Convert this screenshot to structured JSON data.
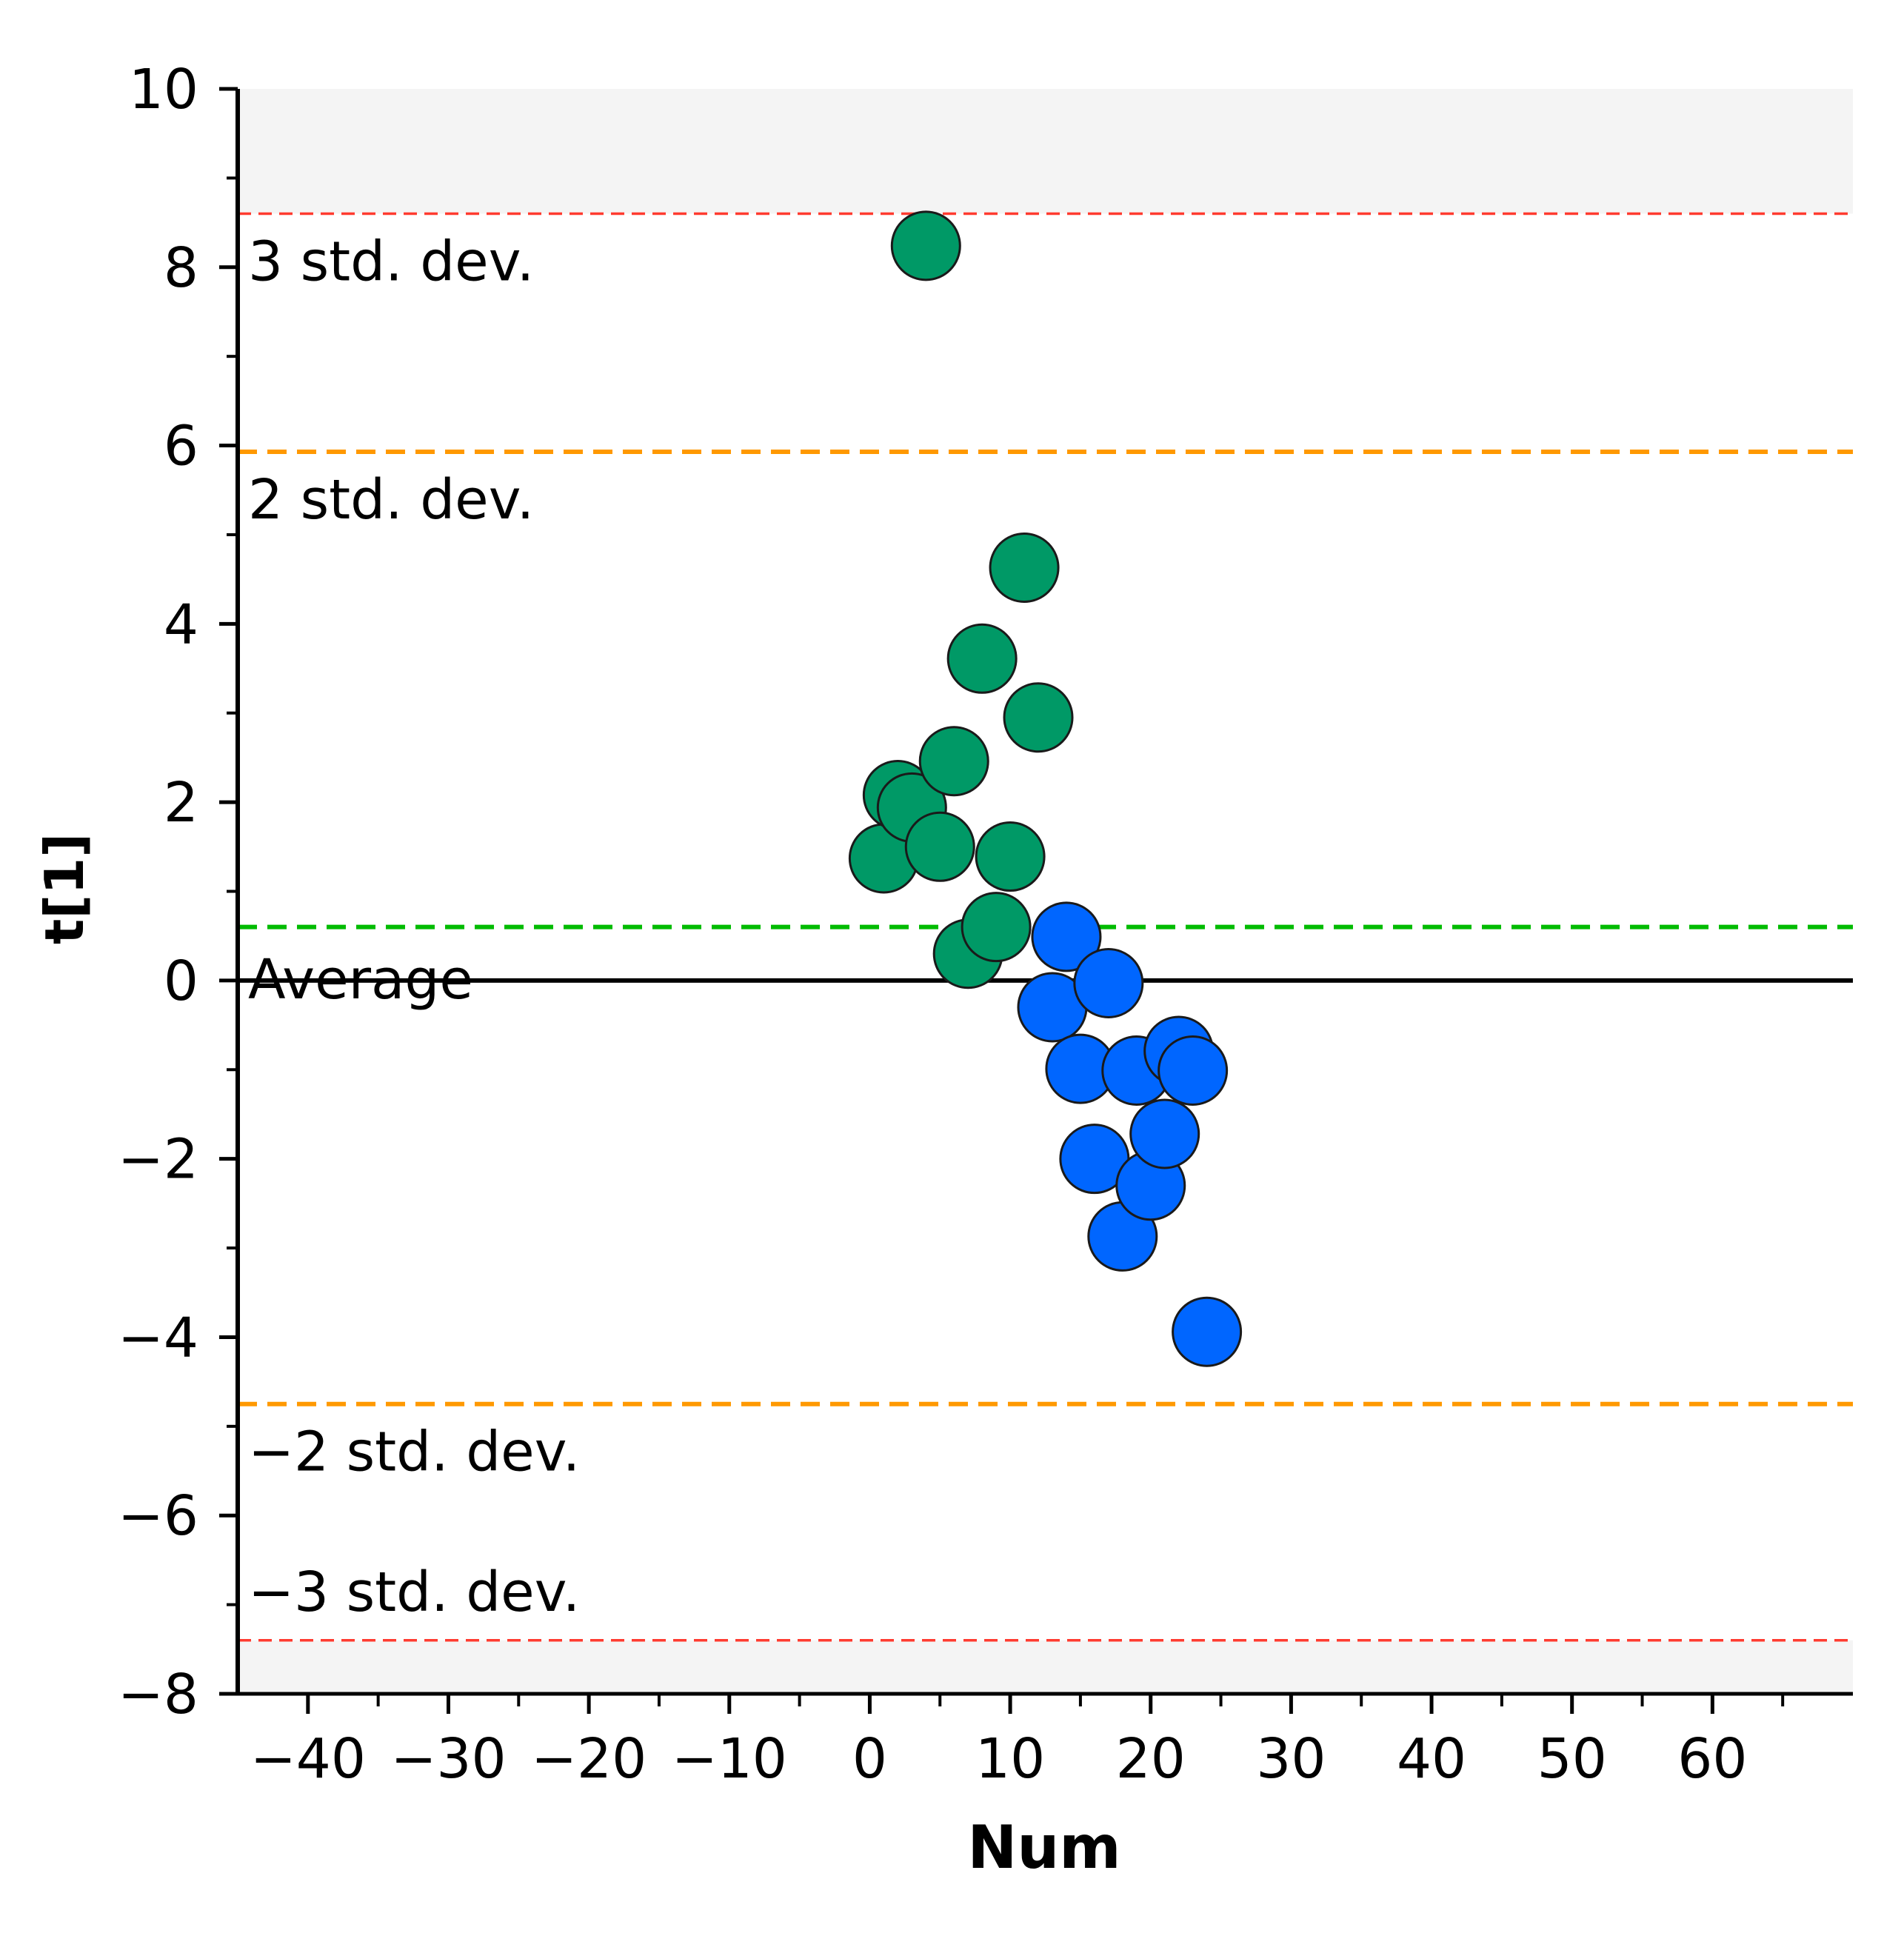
{
  "chart_data": {
    "type": "scatter",
    "title": "",
    "xlabel": "Num",
    "ylabel": "t[1]",
    "xlim": [
      -45,
      70
    ],
    "ylim": [
      -8,
      10
    ],
    "xticks": [
      -40,
      -30,
      -20,
      -10,
      0,
      10,
      20,
      30,
      40,
      50,
      60
    ],
    "xtick_labels": [
      "−40",
      "−30",
      "−20",
      "−10",
      "0",
      "10",
      "20",
      "30",
      "40",
      "50",
      "60"
    ],
    "yticks": [
      10,
      8,
      6,
      4,
      2,
      0,
      -2,
      -4,
      -6,
      -8
    ],
    "ytick_labels": [
      "10",
      "8",
      "6",
      "4",
      "2",
      "0",
      "−2",
      "−4",
      "−6",
      "−8"
    ],
    "grid": false,
    "reference_lines": [
      {
        "name": "3-std-dev",
        "label": "3 std. dev.",
        "y": 8.6,
        "color": "#ff3b30",
        "style": "dashed-thin"
      },
      {
        "name": "2-std-dev",
        "label": "2 std. dev.",
        "y": 5.93,
        "color": "#ff9900",
        "style": "dashed"
      },
      {
        "name": "green-mean",
        "label": "",
        "y": 0.6,
        "color": "#00bb00",
        "style": "dashed"
      },
      {
        "name": "average",
        "label": "Average",
        "y": 0,
        "color": "#000000",
        "style": "solid"
      },
      {
        "name": "minus-2-std-dev",
        "label": "−2 std. dev.",
        "y": -4.75,
        "color": "#ff9900",
        "style": "dashed"
      },
      {
        "name": "minus-3-std-dev",
        "label": "−3 std. dev.",
        "y": -7.4,
        "color": "#ff3b30",
        "style": "dashed-thin"
      }
    ],
    "series": [
      {
        "name": "group-1",
        "color": "#009966",
        "points": [
          [
            1,
            1.37
          ],
          [
            2,
            2.08
          ],
          [
            3,
            1.94
          ],
          [
            4,
            8.24
          ],
          [
            5,
            1.5
          ],
          [
            6,
            2.46
          ],
          [
            7,
            0.3
          ],
          [
            8,
            3.61
          ],
          [
            9,
            0.6
          ],
          [
            10,
            1.39
          ],
          [
            11,
            4.63
          ],
          [
            12,
            2.95
          ]
        ]
      },
      {
        "name": "group-2",
        "color": "#0066ff",
        "points": [
          [
            13,
            -0.3
          ],
          [
            14,
            0.49
          ],
          [
            15,
            -0.99
          ],
          [
            16,
            -2.0
          ],
          [
            17,
            -0.03
          ],
          [
            18,
            -2.87
          ],
          [
            19,
            -1.01
          ],
          [
            20,
            -2.3
          ],
          [
            21,
            -1.72
          ],
          [
            22,
            -0.79
          ],
          [
            23,
            -1.01
          ],
          [
            24,
            -3.94
          ]
        ]
      }
    ],
    "shaded_regions": [
      {
        "from": 8.6,
        "to": 10,
        "color": "#f4f4f4"
      },
      {
        "from": -8,
        "to": -7.4,
        "color": "#f4f4f4"
      }
    ]
  }
}
